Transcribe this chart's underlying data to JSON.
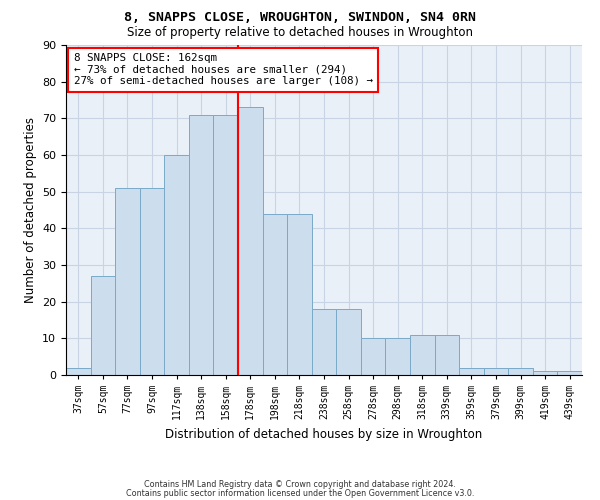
{
  "title1": "8, SNAPPS CLOSE, WROUGHTON, SWINDON, SN4 0RN",
  "title2": "Size of property relative to detached houses in Wroughton",
  "xlabel": "Distribution of detached houses by size in Wroughton",
  "ylabel": "Number of detached properties",
  "bar_labels": [
    "37sqm",
    "57sqm",
    "77sqm",
    "97sqm",
    "117sqm",
    "138sqm",
    "158sqm",
    "178sqm",
    "198sqm",
    "218sqm",
    "238sqm",
    "258sqm",
    "278sqm",
    "298sqm",
    "318sqm",
    "339sqm",
    "359sqm",
    "379sqm",
    "399sqm",
    "419sqm",
    "439sqm"
  ],
  "bar_values": [
    2,
    27,
    51,
    51,
    60,
    71,
    71,
    73,
    44,
    44,
    18,
    18,
    10,
    10,
    11,
    11,
    2,
    2,
    2,
    1,
    1
  ],
  "bar_color": "#ccdded",
  "bar_edge_color": "#7aaac8",
  "vline_color": "red",
  "annotation_text": "8 SNAPPS CLOSE: 162sqm\n← 73% of detached houses are smaller (294)\n27% of semi-detached houses are larger (108) →",
  "annotation_box_color": "white",
  "annotation_box_edge_color": "red",
  "ylim": [
    0,
    90
  ],
  "yticks": [
    0,
    10,
    20,
    30,
    40,
    50,
    60,
    70,
    80,
    90
  ],
  "footnote1": "Contains HM Land Registry data © Crown copyright and database right 2024.",
  "footnote2": "Contains public sector information licensed under the Open Government Licence v3.0.",
  "grid_color": "#c8d4e4",
  "background_color": "#eaf0f8"
}
